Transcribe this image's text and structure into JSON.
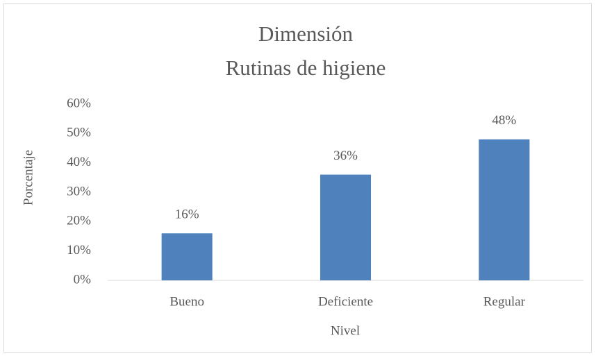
{
  "chart_data": {
    "type": "bar",
    "title": [
      "Dimensión",
      "Rutinas de higiene"
    ],
    "x_label": "Nivel",
    "y_label": "Porcentaje",
    "categories": [
      "Bueno",
      "Deficiente",
      "Regular"
    ],
    "values": [
      16,
      36,
      48
    ],
    "value_labels": [
      "16%",
      "36%",
      "48%"
    ],
    "color": "#4f81bd",
    "ylim": [
      0,
      60
    ],
    "yticks": [
      {
        "value": 0,
        "label": "0%"
      },
      {
        "value": 10,
        "label": "10%"
      },
      {
        "value": 20,
        "label": "20%"
      },
      {
        "value": 30,
        "label": "30%"
      },
      {
        "value": 40,
        "label": "40%"
      },
      {
        "value": 50,
        "label": "50%"
      },
      {
        "value": 60,
        "label": "60%"
      }
    ],
    "grid": false
  }
}
